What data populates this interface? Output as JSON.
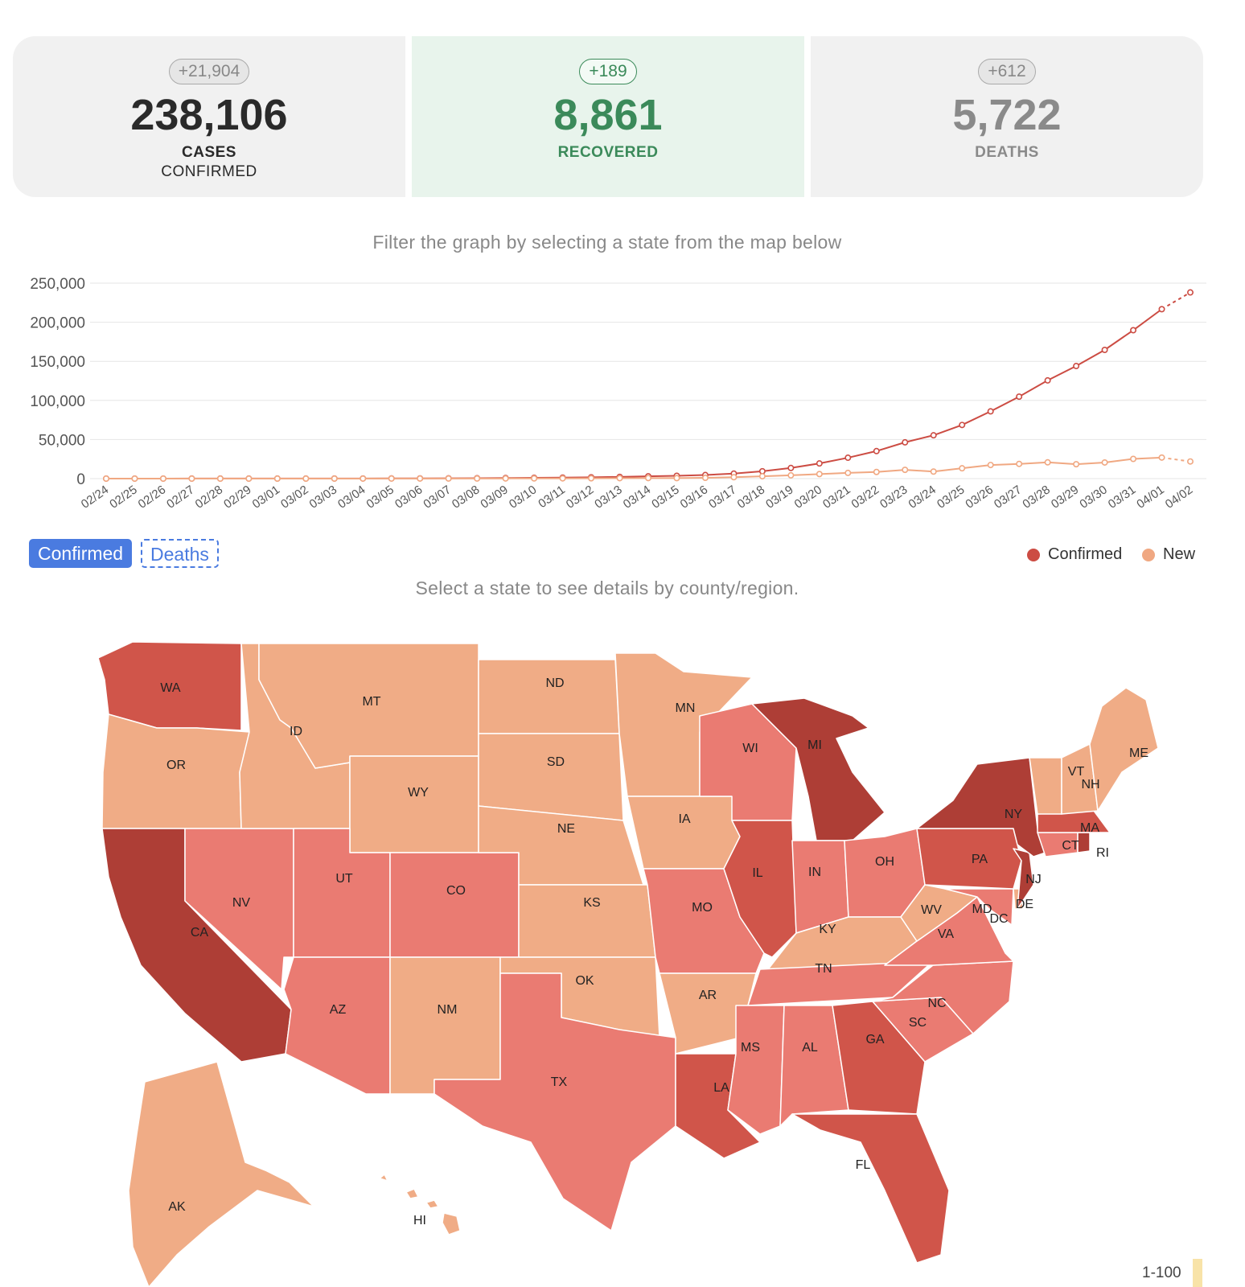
{
  "stats": {
    "cases": {
      "delta": "+21,904",
      "value": "238,106",
      "label1": "CASES",
      "label2": "CONFIRMED"
    },
    "recovered": {
      "delta": "+189",
      "value": "8,861",
      "label1": "RECOVERED"
    },
    "deaths": {
      "delta": "+612",
      "value": "5,722",
      "label1": "DEATHS"
    }
  },
  "graph_hint": "Filter the graph by selecting a state from the map below",
  "map_hint": "Select a state to see details by county/region.",
  "toggle": {
    "confirmed_label": "Confirmed",
    "deaths_label": "Deaths"
  },
  "legend": [
    {
      "name": "Confirmed",
      "color": "#cc4c43"
    },
    {
      "name": "New",
      "color": "#f0a882"
    }
  ],
  "map_scale_label": "1-100",
  "colors": {
    "dark": "#ae3e36",
    "mid": "#d0554a",
    "light": "#ea7b72",
    "pale": "#f0ac86"
  },
  "chart_data": {
    "type": "line",
    "categories": [
      "02/24",
      "02/25",
      "02/26",
      "02/27",
      "02/28",
      "02/29",
      "03/01",
      "03/02",
      "03/03",
      "03/04",
      "03/05",
      "03/06",
      "03/07",
      "03/08",
      "03/09",
      "03/10",
      "03/11",
      "03/12",
      "03/13",
      "03/14",
      "03/15",
      "03/16",
      "03/17",
      "03/18",
      "03/19",
      "03/20",
      "03/21",
      "03/22",
      "03/23",
      "03/24",
      "03/25",
      "03/26",
      "03/27",
      "03/28",
      "03/29",
      "03/30",
      "03/31",
      "04/01",
      "04/02"
    ],
    "ylim": [
      0,
      250000
    ],
    "yticks": [
      "0",
      "50,000",
      "100,000",
      "150,000",
      "200,000",
      "250,000"
    ],
    "series": [
      {
        "name": "Confirmed",
        "color": "#cc4c43",
        "values": [
          50,
          55,
          60,
          65,
          70,
          75,
          85,
          100,
          120,
          150,
          215,
          320,
          450,
          570,
          760,
          1020,
          1300,
          1700,
          2250,
          2950,
          3600,
          4600,
          6400,
          9400,
          13600,
          19400,
          26700,
          35200,
          46400,
          55400,
          68600,
          86000,
          104800,
          125600,
          144000,
          164600,
          189800,
          216700,
          238106
        ]
      },
      {
        "name": "New",
        "color": "#f0a882",
        "values": [
          2,
          5,
          5,
          5,
          5,
          5,
          10,
          15,
          20,
          30,
          65,
          105,
          130,
          120,
          190,
          260,
          280,
          400,
          550,
          700,
          650,
          1000,
          1800,
          3000,
          4200,
          5800,
          7300,
          8500,
          11200,
          9000,
          13200,
          17400,
          18800,
          20800,
          18400,
          20600,
          25200,
          26900,
          21904
        ]
      }
    ]
  },
  "map_states": {
    "WA": "WA",
    "OR": "OR",
    "CA": "CA",
    "NV": "NV",
    "ID": "ID",
    "MT": "MT",
    "WY": "WY",
    "UT": "UT",
    "AZ": "AZ",
    "CO": "CO",
    "NM": "NM",
    "ND": "ND",
    "SD": "SD",
    "NE": "NE",
    "KS": "KS",
    "OK": "OK",
    "TX": "TX",
    "MN": "MN",
    "IA": "IA",
    "MO": "MO",
    "AR": "AR",
    "LA": "LA",
    "WI": "WI",
    "IL": "IL",
    "MI": "MI",
    "IN": "IN",
    "OH": "OH",
    "KY": "KY",
    "TN": "TN",
    "MS": "MS",
    "AL": "AL",
    "GA": "GA",
    "FL": "FL",
    "SC": "SC",
    "NC": "NC",
    "VA": "VA",
    "WV": "WV",
    "MD": "MD",
    "DC": "DC",
    "DE": "DE",
    "PA": "PA",
    "NJ": "NJ",
    "NY": "NY",
    "CT": "CT",
    "RI": "RI",
    "MA": "MA",
    "VT": "VT",
    "NH": "NH",
    "ME": "ME",
    "AK": "AK",
    "HI": "HI"
  }
}
